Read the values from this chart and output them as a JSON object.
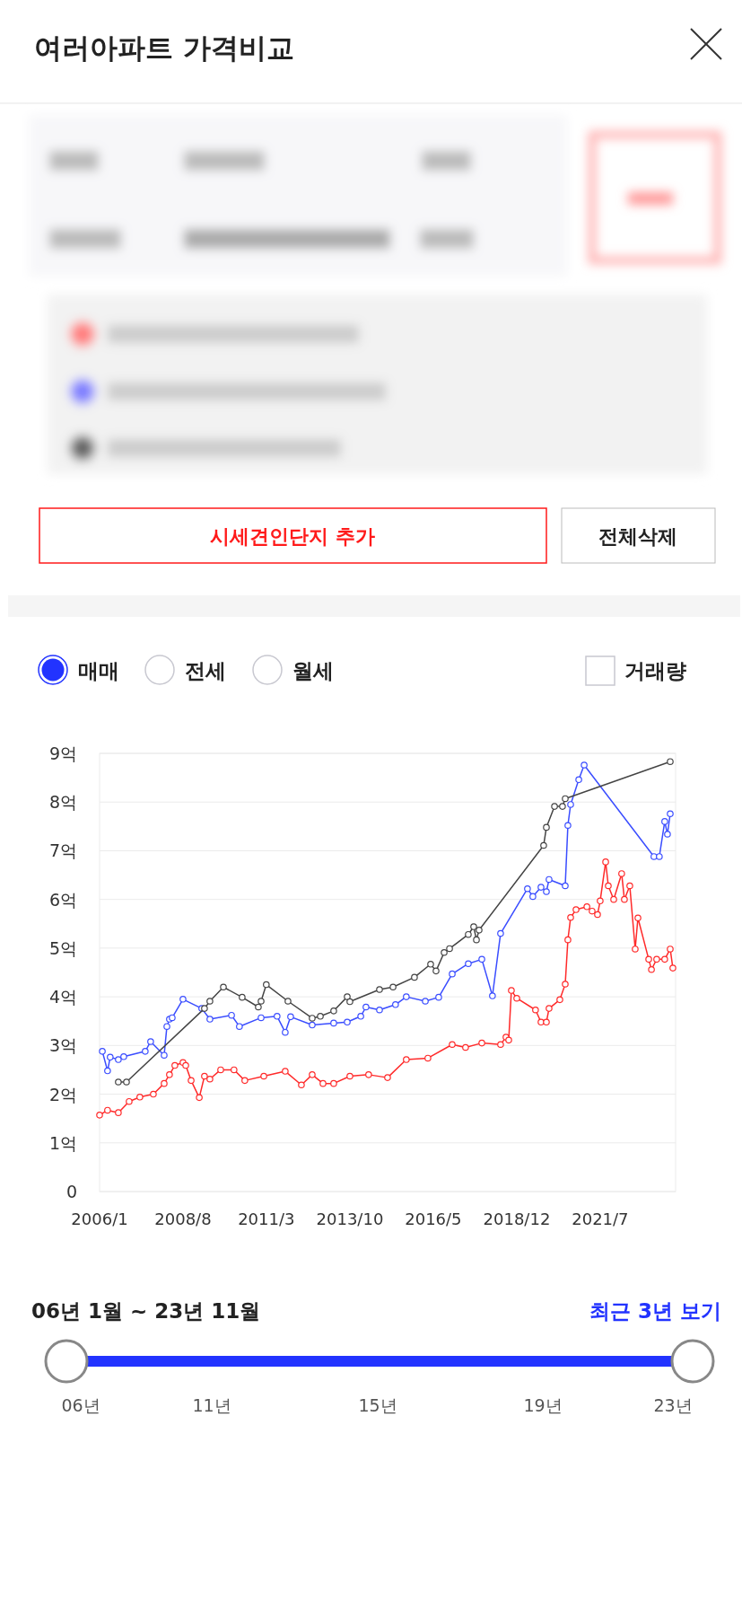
{
  "chart_data": {
    "type": "line",
    "title": "여러아파트 가격비교",
    "xlim": [
      "2006-01",
      "2023-11"
    ],
    "xticks": [
      {
        "value": "2006-01",
        "label": "2006/1"
      },
      {
        "value": "2008-08",
        "label": "2008/8"
      },
      {
        "value": "2011-03",
        "label": "2011/3"
      },
      {
        "value": "2013-10",
        "label": "2013/10"
      },
      {
        "value": "2016-05",
        "label": "2016/5"
      },
      {
        "value": "2018-12",
        "label": "2018/12"
      },
      {
        "value": "2021-07",
        "label": "2021/7"
      }
    ],
    "ylim": [
      0,
      9
    ],
    "yticks": [
      0,
      {
        "value": 1,
        "label": "1억"
      },
      {
        "value": 2,
        "label": "2억"
      },
      {
        "value": 3,
        "label": "3억"
      },
      {
        "value": 4,
        "label": "4억"
      },
      {
        "value": 5,
        "label": "5억"
      },
      {
        "value": 6,
        "label": "6억"
      },
      {
        "value": 7,
        "label": "7억"
      },
      {
        "value": 8,
        "label": "8억"
      },
      {
        "value": 9,
        "label": "9억"
      }
    ],
    "grid": "y",
    "marker": "circle",
    "line_style": "solid",
    "series": [
      {
        "color": "#ff2a2a",
        "x": [
          "2006-01",
          "2006-04",
          "2006-08",
          "2006-12",
          "2007-04",
          "2007-09",
          "2008-01",
          "2008-03",
          "2008-05",
          "2008-08",
          "2008-09",
          "2008-11",
          "2009-02",
          "2009-04",
          "2009-06",
          "2009-10",
          "2010-03",
          "2010-07",
          "2011-02",
          "2011-10",
          "2012-04",
          "2012-08",
          "2012-12",
          "2013-04",
          "2013-10",
          "2014-05",
          "2014-12",
          "2015-07",
          "2016-03",
          "2016-12",
          "2017-05",
          "2017-11",
          "2018-06",
          "2018-08",
          "2018-09",
          "2018-10",
          "2018-12",
          "2019-07",
          "2019-09",
          "2019-11",
          "2019-12",
          "2020-04",
          "2020-06",
          "2020-07",
          "2020-08",
          "2020-10",
          "2021-02",
          "2021-04",
          "2021-06",
          "2021-07",
          "2021-09",
          "2021-10",
          "2021-12",
          "2022-03",
          "2022-04",
          "2022-06",
          "2022-08",
          "2022-09",
          "2023-01",
          "2023-02",
          "2023-04",
          "2023-07",
          "2023-09",
          "2023-10"
        ],
        "values": [
          1.57,
          1.67,
          1.62,
          1.85,
          1.94,
          2.0,
          2.22,
          2.4,
          2.59,
          2.65,
          2.59,
          2.28,
          1.93,
          2.37,
          2.31,
          2.5,
          2.5,
          2.28,
          2.37,
          2.47,
          2.19,
          2.4,
          2.22,
          2.22,
          2.37,
          2.4,
          2.34,
          2.71,
          2.74,
          3.02,
          2.96,
          3.05,
          3.02,
          3.17,
          3.11,
          4.13,
          3.97,
          3.73,
          3.48,
          3.48,
          3.76,
          3.94,
          4.26,
          5.17,
          5.63,
          5.79,
          5.85,
          5.76,
          5.69,
          5.97,
          6.77,
          6.28,
          6.0,
          6.53,
          6.0,
          6.28,
          4.98,
          5.62,
          4.77,
          4.56,
          4.77,
          4.77,
          4.98,
          4.59
        ]
      },
      {
        "color": "#3a4dff",
        "x": [
          "2006-02",
          "2006-04",
          "2006-05",
          "2006-08",
          "2006-10",
          "2007-06",
          "2007-08",
          "2008-01",
          "2008-02",
          "2008-03",
          "2008-04",
          "2008-08",
          "2009-03",
          "2009-06",
          "2010-02",
          "2010-05",
          "2011-01",
          "2011-07",
          "2011-10",
          "2011-12",
          "2012-08",
          "2013-04",
          "2013-09",
          "2014-02",
          "2014-04",
          "2014-09",
          "2015-03",
          "2015-07",
          "2016-02",
          "2016-07",
          "2016-12",
          "2017-06",
          "2017-11",
          "2018-03",
          "2018-06",
          "2019-04",
          "2019-06",
          "2019-09",
          "2019-11",
          "2019-12",
          "2020-06",
          "2020-07",
          "2020-08",
          "2020-11",
          "2021-01",
          "2023-03",
          "2023-05",
          "2023-07",
          "2023-08",
          "2023-09"
        ],
        "values": [
          2.88,
          2.48,
          2.76,
          2.71,
          2.77,
          2.88,
          3.08,
          2.8,
          3.39,
          3.54,
          3.57,
          3.95,
          3.76,
          3.54,
          3.62,
          3.39,
          3.57,
          3.6,
          3.27,
          3.59,
          3.42,
          3.46,
          3.48,
          3.6,
          3.79,
          3.73,
          3.84,
          4.0,
          3.91,
          3.99,
          4.47,
          4.68,
          4.77,
          4.02,
          5.3,
          6.22,
          6.06,
          6.25,
          6.16,
          6.41,
          6.28,
          7.52,
          7.95,
          8.46,
          8.76,
          6.88,
          6.88,
          7.6,
          7.34,
          7.76
        ]
      },
      {
        "color": "#444444",
        "x": [
          "2006-08",
          "2006-11",
          "2009-04",
          "2009-06",
          "2009-11",
          "2010-06",
          "2010-12",
          "2011-01",
          "2011-03",
          "2011-11",
          "2012-08",
          "2012-11",
          "2013-04",
          "2013-09",
          "2013-10",
          "2014-09",
          "2015-02",
          "2015-10",
          "2016-04",
          "2016-06",
          "2016-09",
          "2016-11",
          "2017-06",
          "2017-08",
          "2017-09",
          "2017-10",
          "2019-10",
          "2019-11",
          "2020-02",
          "2020-05",
          "2020-06",
          "2023-09"
        ],
        "values": [
          2.25,
          2.25,
          3.76,
          3.91,
          4.2,
          3.99,
          3.79,
          3.91,
          4.25,
          3.91,
          3.56,
          3.6,
          3.71,
          4.0,
          3.9,
          4.15,
          4.2,
          4.4,
          4.67,
          4.53,
          4.91,
          4.99,
          5.28,
          5.44,
          5.17,
          5.37,
          7.11,
          7.48,
          7.91,
          7.91,
          8.07,
          8.83
        ]
      }
    ],
    "annotations": [
      "시세견인단지 추가",
      "전체삭제",
      "매매",
      "전세",
      "월세",
      "거래량",
      "06년 1월 ~ 23년 11월",
      "최근 3년 보기",
      "06년",
      "11년",
      "15년",
      "19년",
      "23년"
    ]
  }
}
